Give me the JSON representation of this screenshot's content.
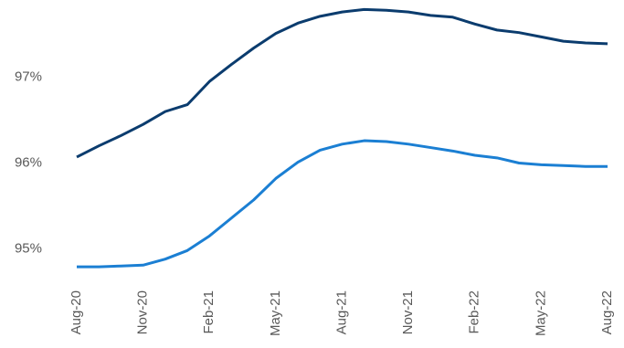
{
  "chart_data": {
    "type": "line",
    "categories": [
      "Aug-20",
      null,
      null,
      "Nov-20",
      null,
      null,
      "Feb-21",
      null,
      null,
      "May-21",
      null,
      null,
      "Aug-21",
      null,
      null,
      "Nov-21",
      null,
      null,
      "Feb-22",
      null,
      null,
      "May-22",
      null,
      null,
      "Aug-22"
    ],
    "series": [
      {
        "color": "#0b3c6e",
        "values": [
          96.07,
          96.2,
          96.32,
          96.45,
          96.6,
          96.68,
          96.95,
          97.15,
          97.34,
          97.51,
          97.63,
          97.71,
          97.76,
          97.79,
          97.78,
          97.76,
          97.72,
          97.7,
          97.62,
          97.55,
          97.52,
          97.47,
          97.42,
          97.4,
          97.39
        ]
      },
      {
        "color": "#1b7fd3",
        "values": [
          94.79,
          94.79,
          94.8,
          94.81,
          94.88,
          94.98,
          95.15,
          95.36,
          95.57,
          95.82,
          96.01,
          96.15,
          96.22,
          96.26,
          96.25,
          96.22,
          96.18,
          96.14,
          96.09,
          96.06,
          96.0,
          95.98,
          95.97,
          95.96,
          95.96
        ]
      }
    ],
    "ylim": [
      94.6,
      97.9
    ],
    "yticks": [
      {
        "value": 95,
        "label": "95%"
      },
      {
        "value": 96,
        "label": "96%"
      },
      {
        "value": 97,
        "label": "97%"
      }
    ],
    "grid": false
  }
}
